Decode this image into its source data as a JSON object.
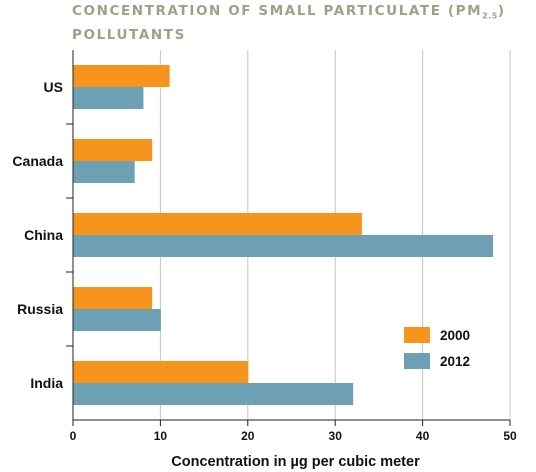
{
  "chart_data": {
    "type": "bar",
    "orientation": "horizontal",
    "title_main": "CONCENTRATION OF SMALL PARTICULATE (PM",
    "title_sub": "2.5",
    "title_end": ")",
    "title_line2": "POLLUTANTS",
    "xlabel": "Concentration in µg per cubic meter",
    "ylabel": "",
    "xlim": [
      0,
      50
    ],
    "xticks": [
      "0",
      "10",
      "20",
      "30",
      "40",
      "50"
    ],
    "grid": true,
    "legend_position": "bottom-right",
    "categories": [
      "US",
      "Canada",
      "China",
      "Russia",
      "India"
    ],
    "series": [
      {
        "name": "2000",
        "color": "#f7941d",
        "values": [
          11,
          9,
          33,
          9,
          20
        ]
      },
      {
        "name": "2012",
        "color": "#6d9fb5",
        "values": [
          8,
          7,
          48,
          10,
          32
        ]
      }
    ]
  }
}
